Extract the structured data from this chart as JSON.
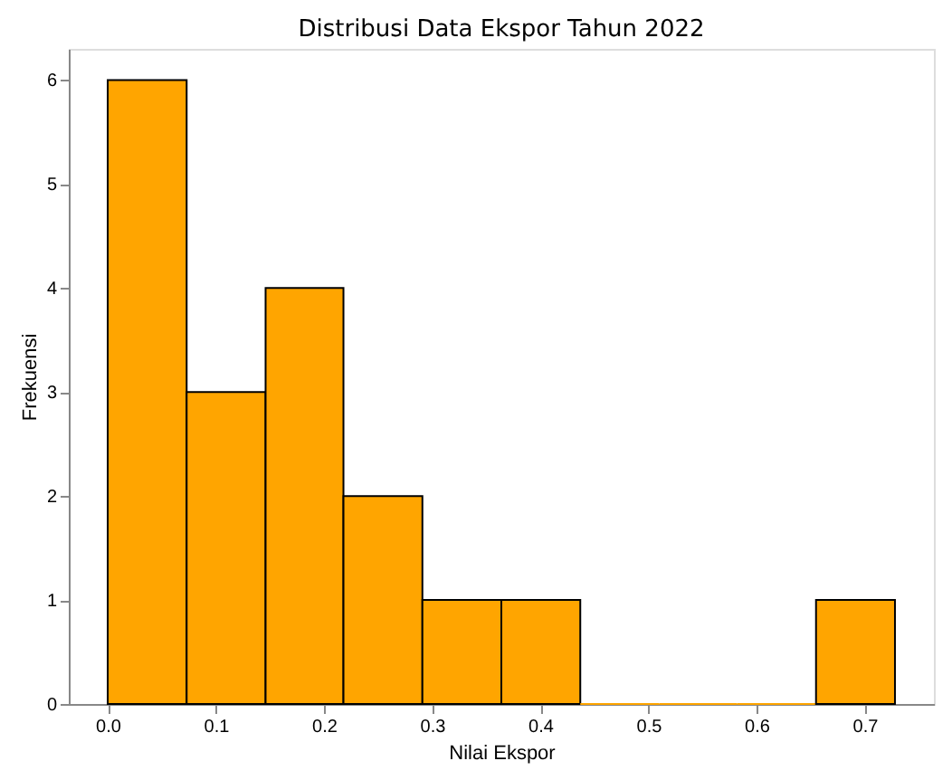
{
  "chart_data": {
    "type": "histogram",
    "title": "Distribusi Data Ekspor Tahun 2022",
    "xlabel": "Nilai Ekspor",
    "ylabel": "Frekuensi",
    "bins": [
      0.0,
      0.073,
      0.146,
      0.218,
      0.291,
      0.364,
      0.437,
      0.51,
      0.582,
      0.655,
      0.728
    ],
    "values": [
      6,
      3,
      4,
      2,
      1,
      1,
      0,
      0,
      0,
      1
    ],
    "color": "#ffa500",
    "xlim": [
      -0.036,
      0.764
    ],
    "xticks": [
      {
        "value": 0,
        "label": "0.0"
      },
      0.1,
      0.2,
      0.3,
      0.4,
      0.5,
      0.6,
      0.7
    ],
    "ylim": [
      0,
      6.3
    ],
    "yticks": [
      0,
      1,
      2,
      3,
      4,
      5,
      6
    ],
    "grid": false
  }
}
